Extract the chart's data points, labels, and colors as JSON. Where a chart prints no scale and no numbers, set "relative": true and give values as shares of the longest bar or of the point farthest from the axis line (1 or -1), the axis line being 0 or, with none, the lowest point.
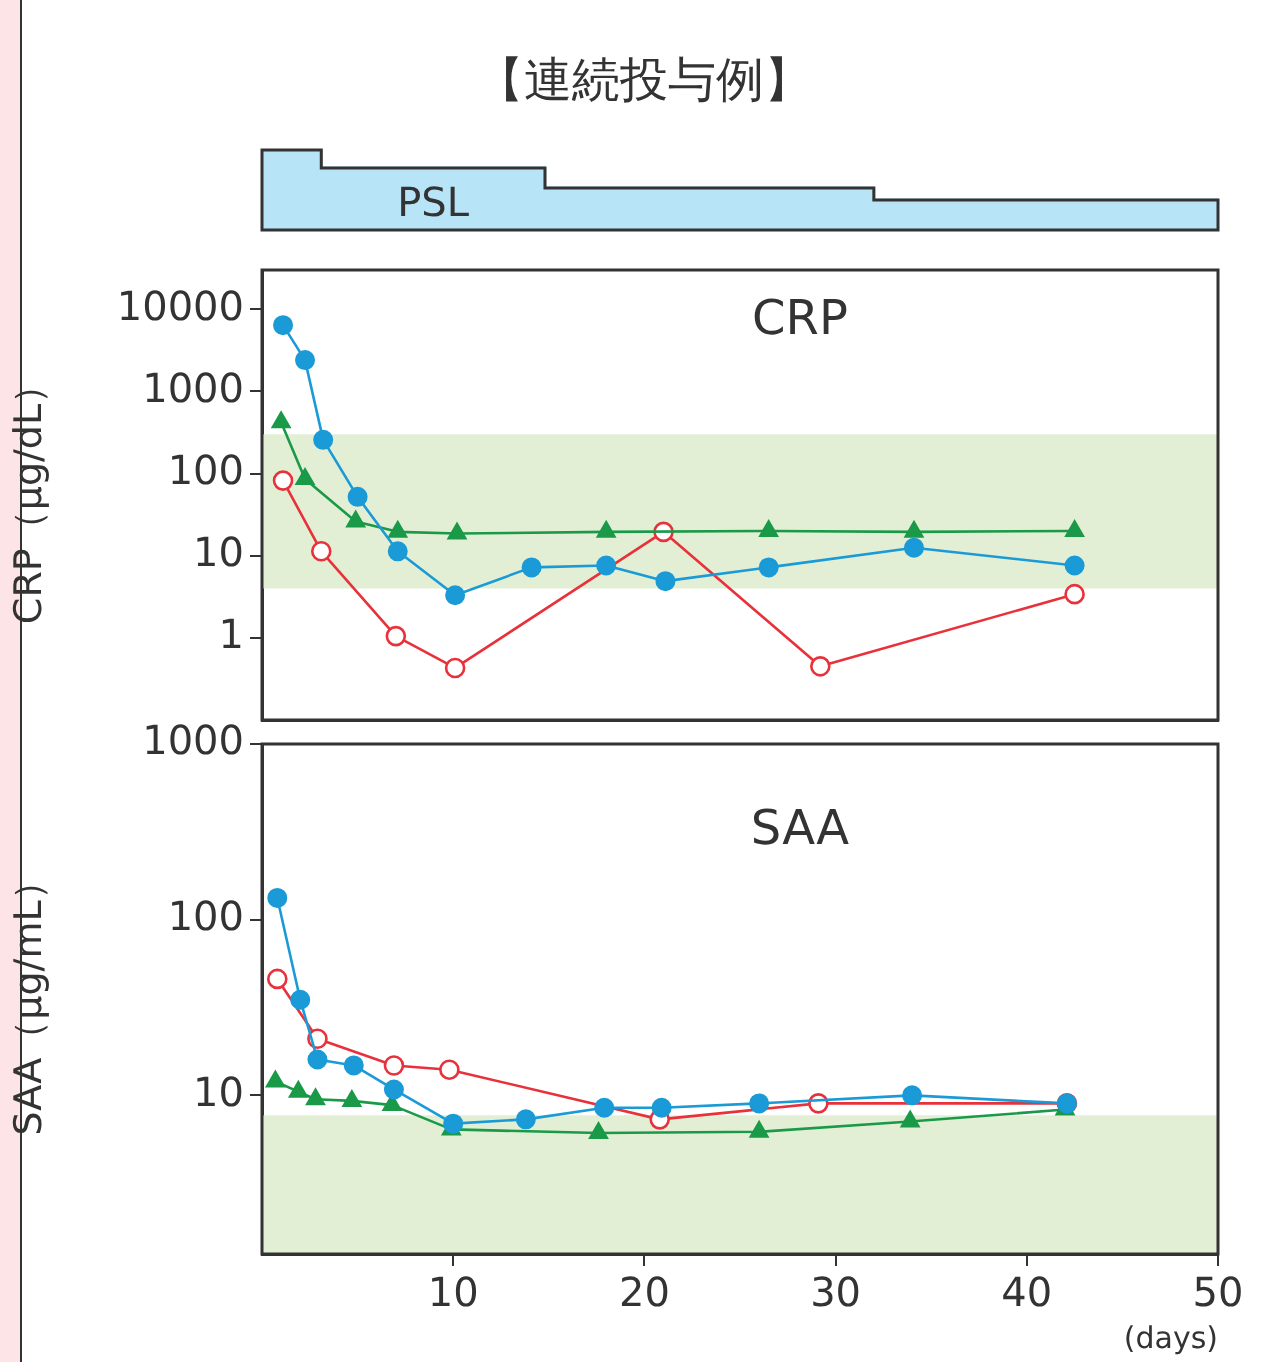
{
  "chart_data": [
    {
      "type": "area",
      "title": "【連続投与例】",
      "x": [
        0,
        3.1,
        3.1,
        14.8,
        14.8,
        32,
        32,
        50
      ],
      "relative": true,
      "xlim": [
        0,
        50
      ],
      "tick_labels": false,
      "series": [
        {
          "name": "PSL",
          "color": "#b8e4f8",
          "values": [
            1,
            1,
            0.775,
            0.775,
            0.525,
            0.525,
            0.375,
            0.375
          ]
        }
      ]
    },
    {
      "type": "line",
      "title": "CRP",
      "ylabel": "CRP（μg/dL）",
      "xlim": [
        0,
        50
      ],
      "ylim": [
        0.1,
        30000
      ],
      "yticks": [
        1,
        10,
        100,
        1000,
        10000
      ],
      "log": "y",
      "tick_labels": "y",
      "marker": "circle",
      "bands": [
        {
          "axis": "y",
          "from": 4,
          "to": 300,
          "color": "#e2efd4"
        }
      ],
      "series": [
        {
          "color": "#1a9ad6",
          "x": [
            1.1,
            2.25,
            3.2,
            5.0,
            7.1,
            10.1,
            14.1,
            18.0,
            21.1,
            26.5,
            34.1,
            42.5
          ],
          "values": [
            6400,
            2400,
            257,
            52,
            11.3,
            3.3,
            7.2,
            7.6,
            4.9,
            7.2,
            12.5,
            7.6
          ]
        },
        {
          "color": "#1a9a48",
          "marker": "triangle",
          "x": [
            1.0,
            2.25,
            4.9,
            7.1,
            10.2,
            18.0,
            26.5,
            34.1,
            42.5
          ],
          "values": [
            420,
            86,
            26,
            19.5,
            18.6,
            19.5,
            20,
            19.5,
            20
          ]
        },
        {
          "color": "#e8313a",
          "x": [
            1.1,
            3.1,
            7.0,
            10.1,
            21.0,
            29.2,
            42.5
          ],
          "values": [
            82,
            11.3,
            1.05,
            0.43,
            19.5,
            0.45,
            3.4
          ]
        }
      ]
    },
    {
      "type": "line",
      "title": "SAA",
      "xlabel": "(days)",
      "ylabel": "SAA（μg/mL）",
      "xlim": [
        0,
        50
      ],
      "xticks": [
        10,
        20,
        30,
        40,
        50
      ],
      "ylim": [
        1.25,
        1000
      ],
      "yticks": [
        10,
        100,
        1000
      ],
      "log": "y",
      "marker": "circle",
      "bands": [
        {
          "axis": "y",
          "from": 1.25,
          "to": 7.7,
          "color": "#e2efd4"
        }
      ],
      "series": [
        {
          "color": "#1a9ad6",
          "x": [
            0.8,
            2.0,
            2.9,
            4.8,
            6.9,
            10.0,
            13.8,
            17.9,
            20.9,
            26.0,
            34.0,
            42.1
          ],
          "values": [
            133,
            35,
            16,
            14.8,
            10.8,
            6.9,
            7.3,
            8.5,
            8.5,
            9.0,
            10,
            9.0
          ]
        },
        {
          "color": "#1a9a48",
          "marker": "triangle",
          "x": [
            0.7,
            1.9,
            2.8,
            4.7,
            6.8,
            9.9,
            17.6,
            26.0,
            33.9,
            42.0
          ],
          "values": [
            12,
            10.5,
            9.5,
            9.3,
            8.8,
            6.4,
            6.1,
            6.2,
            7.1,
            8.3
          ]
        },
        {
          "color": "#e8313a",
          "x": [
            0.8,
            2.9,
            6.9,
            9.8,
            20.8,
            29.1,
            42.1
          ],
          "values": [
            46,
            21,
            14.8,
            14,
            7.3,
            9.0,
            9.0
          ]
        }
      ]
    }
  ]
}
